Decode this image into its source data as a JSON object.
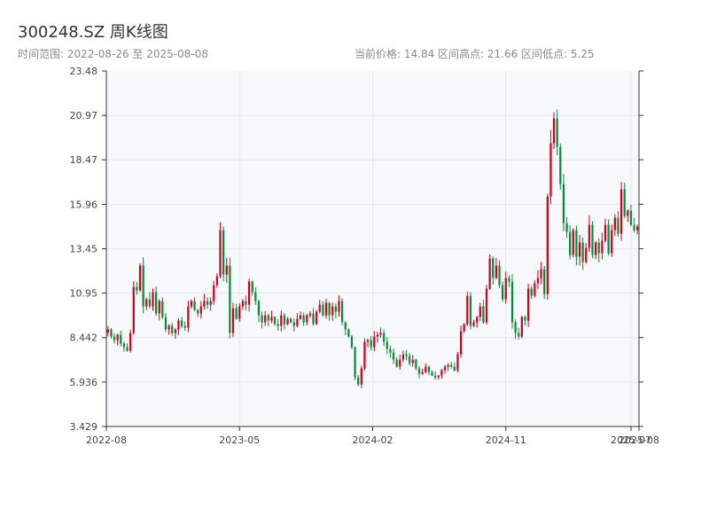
{
  "header": {
    "title": "300248.SZ 周K线图",
    "range_text": "时间范围: 2022-08-26 至 2025-08-08",
    "stats_text": "当前价格: 14.84   区间高点: 21.66   区间低点: 5.25"
  },
  "colors": {
    "up": "#d0021b",
    "down": "#0a8a3a",
    "plot_bg": "#f6f8fb",
    "grid": "#e3e7ee",
    "axis": "#333333"
  },
  "chart_data": {
    "type": "candlestick",
    "title": "300248.SZ 周K线图",
    "start_date": "2022-08-26",
    "end_date": "2025-08-08",
    "current_price": 14.84,
    "range_high": 21.66,
    "range_low": 5.25,
    "ylim": [
      3.429,
      23.48
    ],
    "y_ticks": [
      3.429,
      5.936,
      8.442,
      10.95,
      13.45,
      15.96,
      18.47,
      20.97,
      23.48
    ],
    "y_tick_labels": [
      "3.429",
      "5.936",
      "8.442",
      "10.95",
      "13.45",
      "15.96",
      "18.47",
      "20.97",
      "23.48"
    ],
    "x_ticks": [
      {
        "label": "2022-08",
        "pos": 0
      },
      {
        "label": "2023-05",
        "pos": 0.25
      },
      {
        "label": "2024-02",
        "pos": 0.5
      },
      {
        "label": "2024-11",
        "pos": 0.75
      },
      {
        "label": "2025-07",
        "pos": 0.985
      },
      {
        "label": "2025-08",
        "pos": 1.0
      }
    ],
    "grid": true,
    "closes": [
      8.9,
      8.5,
      8.3,
      8.6,
      8.1,
      7.9,
      7.7,
      8.7,
      11.3,
      11.1,
      12.5,
      10.2,
      10.6,
      10.2,
      11.0,
      9.8,
      10.5,
      9.6,
      8.9,
      9.1,
      8.7,
      8.9,
      9.4,
      9.1,
      9.0,
      10.2,
      10.5,
      10.0,
      9.8,
      10.2,
      10.5,
      10.3,
      10.5,
      11.4,
      11.9,
      14.5,
      12.0,
      12.5,
      8.7,
      10.1,
      9.5,
      10.2,
      10.5,
      10.3,
      11.6,
      11.0,
      10.5,
      9.7,
      9.3,
      9.7,
      9.4,
      9.6,
      9.2,
      9.1,
      9.7,
      9.2,
      9.5,
      9.3,
      9.1,
      9.5,
      9.7,
      9.3,
      9.7,
      9.8,
      9.2,
      9.9,
      10.3,
      9.7,
      10.4,
      9.7,
      10.2,
      9.9,
      10.5,
      9.3,
      8.9,
      8.5,
      7.9,
      6.2,
      5.8,
      6.7,
      8.2,
      8.3,
      7.9,
      8.5,
      8.6,
      8.7,
      8.2,
      7.8,
      7.6,
      7.2,
      6.8,
      7.2,
      7.5,
      7.4,
      7.0,
      7.2,
      6.7,
      6.4,
      6.5,
      6.8,
      6.5,
      6.3,
      6.2,
      6.3,
      6.6,
      6.8,
      6.9,
      6.8,
      6.6,
      7.5,
      8.8,
      9.2,
      10.8,
      9.1,
      9.3,
      9.6,
      10.2,
      9.3,
      11.2,
      12.9,
      11.8,
      12.5,
      11.4,
      10.6,
      11.8,
      11.6,
      9.3,
      8.7,
      8.5,
      9.6,
      9.4,
      11.2,
      10.8,
      11.5,
      11.8,
      12.3,
      10.9,
      16.4,
      19.4,
      20.8,
      19.2,
      17.1,
      14.9,
      14.4,
      13.1,
      14.5,
      13.0,
      13.8,
      12.7,
      13.5,
      14.8,
      13.1,
      13.8,
      13.2,
      13.9,
      14.8,
      13.2,
      14.5,
      15.2,
      14.3,
      16.8,
      15.3,
      15.6,
      14.8,
      14.5,
      14.7
    ]
  }
}
